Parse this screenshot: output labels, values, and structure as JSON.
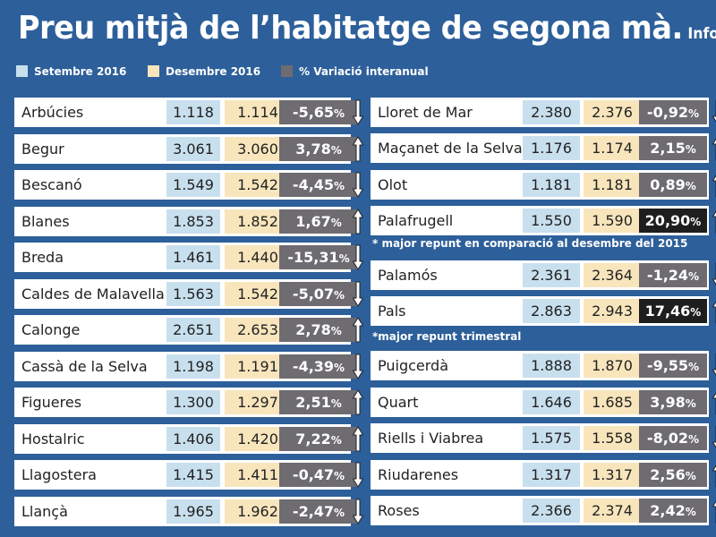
{
  "header": {
    "title": "Preu mitjà de l’habitatge de segona mà.",
    "title_tail": "Infor"
  },
  "legend": [
    {
      "label": "Setembre 2016",
      "color": "#c8dfee"
    },
    {
      "label": "Desembre 2016",
      "color": "#f8e5bc"
    },
    {
      "label": "% Variació interanual",
      "color": "#6e6c70"
    }
  ],
  "notes": {
    "palafrugell": "* major repunt en comparació al desembre del 2015",
    "pals": "*major repunt trimestral"
  },
  "chart_data": {
    "type": "table",
    "title": "Preu mitjà de l’habitatge de segona mà.",
    "columns": [
      "Setembre 2016",
      "Desembre 2016",
      "% Variació interanual"
    ],
    "rows_left": [
      {
        "name": "Arbúcies",
        "sep": "1.118",
        "des": "1.114",
        "var": "-5,65",
        "dir": "down"
      },
      {
        "name": "Begur",
        "sep": "3.061",
        "des": "3.060",
        "var": "3,78",
        "dir": "up"
      },
      {
        "name": "Bescanó",
        "sep": "1.549",
        "des": "1.542",
        "var": "-4,45",
        "dir": "down"
      },
      {
        "name": "Blanes",
        "sep": "1.853",
        "des": "1.852",
        "var": "1,67",
        "dir": "up"
      },
      {
        "name": "Breda",
        "sep": "1.461",
        "des": "1.440",
        "var": "-15,31",
        "dir": "down"
      },
      {
        "name": "Caldes de Malavella",
        "sep": "1.563",
        "des": "1.542",
        "var": "-5,07",
        "dir": "down"
      },
      {
        "name": "Calonge",
        "sep": "2.651",
        "des": "2.653",
        "var": "2,78",
        "dir": "up"
      },
      {
        "name": "Cassà de la Selva",
        "sep": "1.198",
        "des": "1.191",
        "var": "-4,39",
        "dir": "down"
      },
      {
        "name": "Figueres",
        "sep": "1.300",
        "des": "1.297",
        "var": "2,51",
        "dir": "up"
      },
      {
        "name": "Hostalric",
        "sep": "1.406",
        "des": "1.420",
        "var": "7,22",
        "dir": "up"
      },
      {
        "name": "Llagostera",
        "sep": "1.415",
        "des": "1.411",
        "var": "-0,47",
        "dir": "down"
      },
      {
        "name": "Llançà",
        "sep": "1.965",
        "des": "1.962",
        "var": "-2,47",
        "dir": "down"
      }
    ],
    "rows_right": [
      {
        "name": "Lloret de Mar",
        "sep": "2.380",
        "des": "2.376",
        "var": "-0,92",
        "dir": "down"
      },
      {
        "name": "Maçanet de la Selva",
        "sep": "1.176",
        "des": "1.174",
        "var": "2,15",
        "dir": "up"
      },
      {
        "name": "Olot",
        "sep": "1.181",
        "des": "1.181",
        "var": "0,89",
        "dir": "up"
      },
      {
        "name": "Palafrugell",
        "sep": "1.550",
        "des": "1.590",
        "var": "20,90",
        "dir": "up",
        "highlight": true
      },
      {
        "name": "Palamós",
        "sep": "2.361",
        "des": "2.364",
        "var": "-1,24",
        "dir": "down"
      },
      {
        "name": "Pals",
        "sep": "2.863",
        "des": "2.943",
        "var": "17,46",
        "dir": "up",
        "highlight": true
      },
      {
        "name": "Puigcerdà",
        "sep": "1.888",
        "des": "1.870",
        "var": "-9,55",
        "dir": "down"
      },
      {
        "name": "Quart",
        "sep": "1.646",
        "des": "1.685",
        "var": "3,98",
        "dir": "up"
      },
      {
        "name": "Riells i Viabrea",
        "sep": "1.575",
        "des": "1.558",
        "var": "-8,02",
        "dir": "down"
      },
      {
        "name": "Riudarenes",
        "sep": "1.317",
        "des": "1.317",
        "var": "2,56",
        "dir": "up"
      },
      {
        "name": "Roses",
        "sep": "2.366",
        "des": "2.374",
        "var": "2,42",
        "dir": "up"
      }
    ]
  }
}
